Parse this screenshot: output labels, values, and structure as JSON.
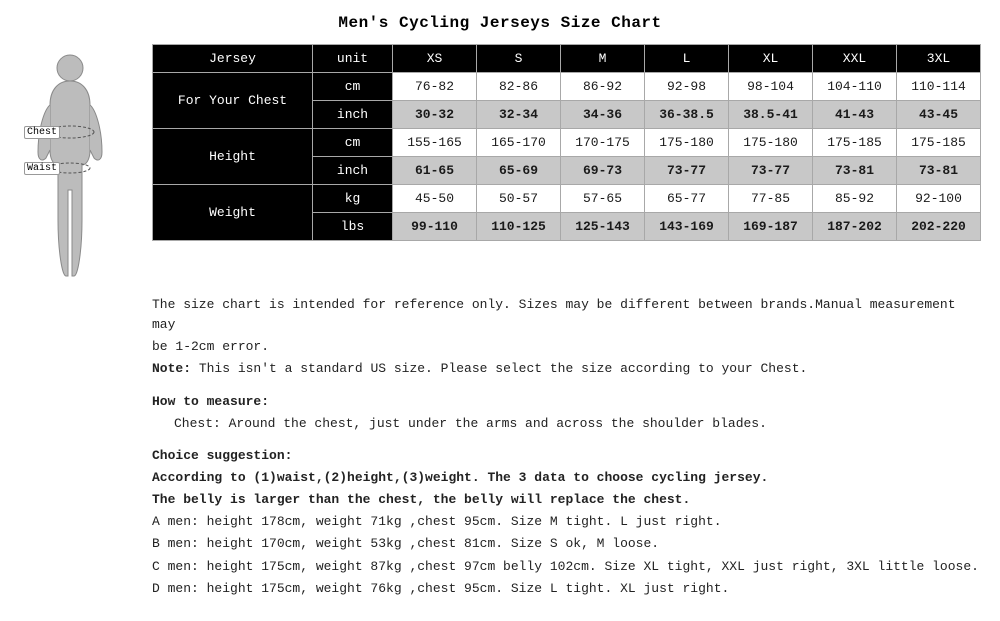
{
  "title": "Men's Cycling Jerseys Size Chart",
  "figure": {
    "chest_label": "Chest",
    "waist_label": "Waist"
  },
  "table": {
    "header": {
      "jersey": "Jersey",
      "unit": "unit",
      "sizes": [
        "XS",
        "S",
        "M",
        "L",
        "XL",
        "XXL",
        "3XL"
      ]
    },
    "attributes": [
      {
        "label": "For Your Chest",
        "rows": [
          {
            "unit": "cm",
            "shade": "white",
            "values": [
              "76-82",
              "82-86",
              "86-92",
              "92-98",
              "98-104",
              "104-110",
              "110-114"
            ]
          },
          {
            "unit": "inch",
            "shade": "grey",
            "values": [
              "30-32",
              "32-34",
              "34-36",
              "36-38.5",
              "38.5-41",
              "41-43",
              "43-45"
            ]
          }
        ]
      },
      {
        "label": "Height",
        "rows": [
          {
            "unit": "cm",
            "shade": "white",
            "values": [
              "155-165",
              "165-170",
              "170-175",
              "175-180",
              "175-180",
              "175-185",
              "175-185"
            ]
          },
          {
            "unit": "inch",
            "shade": "grey",
            "values": [
              "61-65",
              "65-69",
              "69-73",
              "73-77",
              "73-77",
              "73-81",
              "73-81"
            ]
          }
        ]
      },
      {
        "label": "Weight",
        "rows": [
          {
            "unit": "kg",
            "shade": "white",
            "values": [
              "45-50",
              "50-57",
              "57-65",
              "65-77",
              "77-85",
              "85-92",
              "92-100"
            ]
          },
          {
            "unit": "lbs",
            "shade": "grey",
            "values": [
              "99-110",
              "110-125",
              "125-143",
              "143-169",
              "169-187",
              "187-202",
              "202-220"
            ]
          }
        ]
      }
    ],
    "colors": {
      "header_bg": "#000000",
      "header_fg": "#ffffff",
      "row_white_bg": "#ffffff",
      "row_grey_bg": "#c8c8c8",
      "border": "#a8a8a8"
    }
  },
  "notes": {
    "disclaimer_1": "The size chart is intended for reference only. Sizes may be different between brands.Manual measurement may",
    "disclaimer_2": "be 1-2cm error.",
    "note_label": "Note:",
    "note_text": " This isn't a standard US size. Please select the size according to your Chest.",
    "measure_heading": "How to measure:",
    "measure_text": "Chest: Around the chest, just under the arms and across the shoulder blades.",
    "choice_heading": "Choice suggestion:",
    "choice_line1": "According to (1)waist,(2)height,(3)weight. The 3 data to choose cycling jersey.",
    "choice_line2": "The belly is larger than the chest, the belly will replace the chest.",
    "examples": [
      "A men: height 178cm, weight 71kg ,chest 95cm. Size M tight. L just right.",
      "B men: height 170cm, weight 53kg ,chest 81cm. Size S ok, M loose.",
      "C men: height 175cm, weight 87kg ,chest 97cm belly 102cm. Size XL tight, XXL just right, 3XL little loose.",
      "D men: height 175cm, weight 76kg ,chest 95cm. Size L tight. XL just right."
    ]
  }
}
